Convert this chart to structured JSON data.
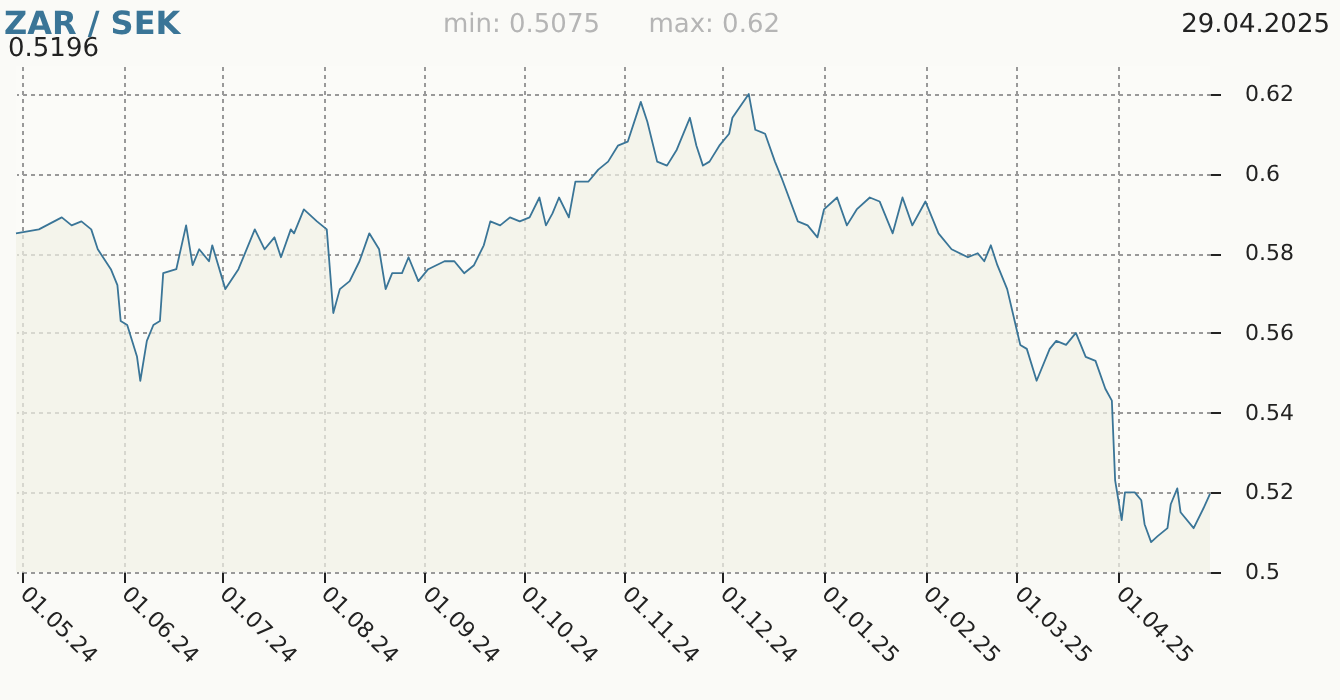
{
  "chart_data": {
    "type": "area",
    "title": "ZAR / SEK",
    "annotations": [
      "min: 0.5075",
      "max: 0.62",
      "29.04.2025",
      "0.5196"
    ],
    "x": [
      "2024-04-29",
      "2024-05-06",
      "2024-05-13",
      "2024-05-16",
      "2024-05-19",
      "2024-05-22",
      "2024-05-24",
      "2024-05-28",
      "2024-05-30",
      "2024-05-31",
      "2024-06-02",
      "2024-06-05",
      "2024-06-06",
      "2024-06-08",
      "2024-06-10",
      "2024-06-12",
      "2024-06-13",
      "2024-06-17",
      "2024-06-20",
      "2024-06-22",
      "2024-06-24",
      "2024-06-27",
      "2024-06-28",
      "2024-07-02",
      "2024-07-06",
      "2024-07-11",
      "2024-07-14",
      "2024-07-17",
      "2024-07-19",
      "2024-07-22",
      "2024-07-23",
      "2024-07-26",
      "2024-07-30",
      "2024-08-02",
      "2024-08-04",
      "2024-08-06",
      "2024-08-09",
      "2024-08-12",
      "2024-08-15",
      "2024-08-18",
      "2024-08-20",
      "2024-08-22",
      "2024-08-25",
      "2024-08-27",
      "2024-08-30",
      "2024-09-02",
      "2024-09-07",
      "2024-09-10",
      "2024-09-13",
      "2024-09-16",
      "2024-09-19",
      "2024-09-21",
      "2024-09-24",
      "2024-09-27",
      "2024-09-30",
      "2024-10-03",
      "2024-10-06",
      "2024-10-08",
      "2024-10-10",
      "2024-10-12",
      "2024-10-15",
      "2024-10-17",
      "2024-10-21",
      "2024-10-24",
      "2024-10-27",
      "2024-10-30",
      "2024-11-02",
      "2024-11-06",
      "2024-11-08",
      "2024-11-11",
      "2024-11-14",
      "2024-11-17",
      "2024-11-21",
      "2024-11-23",
      "2024-11-25",
      "2024-11-27",
      "2024-11-30",
      "2024-12-03",
      "2024-12-04",
      "2024-12-09",
      "2024-12-11",
      "2024-12-14",
      "2024-12-17",
      "2024-12-19",
      "2024-12-24",
      "2024-12-27",
      "2024-12-30",
      "2025-01-01",
      "2025-01-05",
      "2025-01-08",
      "2025-01-11",
      "2025-01-15",
      "2025-01-18",
      "2025-01-22",
      "2025-01-25",
      "2025-01-28",
      "2025-02-01",
      "2025-02-05",
      "2025-02-09",
      "2025-02-14",
      "2025-02-17",
      "2025-02-19",
      "2025-02-21",
      "2025-02-23",
      "2025-02-26",
      "2025-03-02",
      "2025-03-04",
      "2025-03-07",
      "2025-03-11",
      "2025-03-13",
      "2025-03-16",
      "2025-03-19",
      "2025-03-22",
      "2025-03-25",
      "2025-03-28",
      "2025-03-30",
      "2025-03-31",
      "2025-04-02",
      "2025-04-03",
      "2025-04-06",
      "2025-04-08",
      "2025-04-09",
      "2025-04-11",
      "2025-04-13",
      "2025-04-16",
      "2025-04-17",
      "2025-04-19",
      "2025-04-20",
      "2025-04-24",
      "2025-04-27",
      "2025-04-29"
    ],
    "series": [
      {
        "color": "#3a7597",
        "values": [
          0.585,
          0.586,
          0.589,
          0.587,
          0.588,
          0.586,
          0.581,
          0.576,
          0.572,
          0.563,
          0.562,
          0.554,
          0.548,
          0.558,
          0.562,
          0.563,
          0.575,
          0.576,
          0.587,
          0.577,
          0.581,
          0.578,
          0.582,
          0.571,
          0.576,
          0.586,
          0.581,
          0.584,
          0.579,
          0.586,
          0.585,
          0.591,
          0.588,
          0.586,
          0.565,
          0.571,
          0.573,
          0.578,
          0.585,
          0.581,
          0.571,
          0.575,
          0.575,
          0.579,
          0.573,
          0.576,
          0.578,
          0.578,
          0.575,
          0.577,
          0.582,
          0.588,
          0.587,
          0.589,
          0.588,
          0.589,
          0.594,
          0.587,
          0.59,
          0.594,
          0.589,
          0.598,
          0.598,
          0.601,
          0.603,
          0.607,
          0.608,
          0.618,
          0.613,
          0.603,
          0.602,
          0.606,
          0.614,
          0.607,
          0.602,
          0.603,
          0.607,
          0.61,
          0.614,
          0.62,
          0.611,
          0.61,
          0.603,
          0.599,
          0.588,
          0.587,
          0.584,
          0.591,
          0.594,
          0.587,
          0.591,
          0.594,
          0.593,
          0.585,
          0.594,
          0.587,
          0.593,
          0.585,
          0.581,
          0.579,
          0.58,
          0.578,
          0.582,
          0.577,
          0.571,
          0.557,
          0.556,
          0.548,
          0.556,
          0.558,
          0.557,
          0.56,
          0.554,
          0.553,
          0.546,
          0.543,
          0.523,
          0.513,
          0.52,
          0.52,
          0.518,
          0.512,
          0.5075,
          0.509,
          0.511,
          0.517,
          0.521,
          0.515,
          0.511,
          0.516,
          0.5196
        ]
      }
    ],
    "xlim": [
      "2024-04-29",
      "2025-04-29"
    ],
    "xticks": [
      {
        "value": "2024-05-01",
        "label": "01.05.24"
      },
      {
        "value": "2024-06-01",
        "label": "01.06.24"
      },
      {
        "value": "2024-07-01",
        "label": "01.07.24"
      },
      {
        "value": "2024-08-01",
        "label": "01.08.24"
      },
      {
        "value": "2024-09-01",
        "label": "01.09.24"
      },
      {
        "value": "2024-10-01",
        "label": "01.10.24"
      },
      {
        "value": "2024-11-01",
        "label": "01.11.24"
      },
      {
        "value": "2024-12-01",
        "label": "01.12.24"
      },
      {
        "value": "2025-01-01",
        "label": "01.01.25"
      },
      {
        "value": "2025-02-01",
        "label": "01.02.25"
      },
      {
        "value": "2025-03-01",
        "label": "01.03.25"
      },
      {
        "value": "2025-04-01",
        "label": "01.04.25"
      }
    ],
    "ylim": [
      0.5,
      0.627
    ],
    "yticks": [
      0.5,
      0.52,
      0.54,
      0.56,
      0.58,
      0.6,
      0.62
    ],
    "grid": true
  }
}
